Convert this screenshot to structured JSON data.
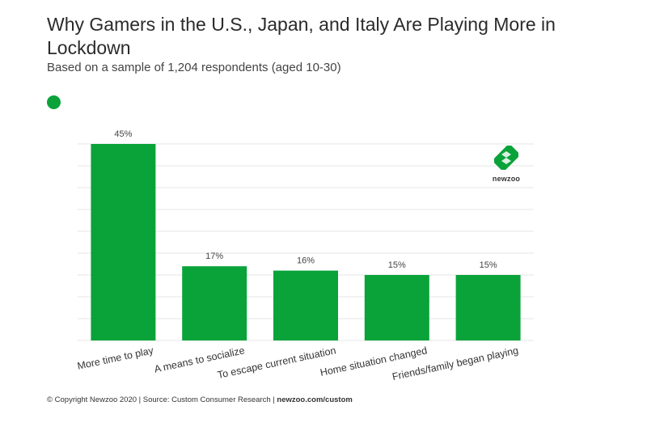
{
  "header": {
    "title": "Why Gamers in the U.S., Japan, and Italy Are Playing More in Lockdown",
    "subtitle": "Based on a sample of 1,204 respondents (aged 10-30)"
  },
  "colors": {
    "bar": "#0aa33a",
    "grid": "#e6e6e6",
    "text": "#333333"
  },
  "chart_data": {
    "type": "bar",
    "title": "Why Gamers in the U.S., Japan, and Italy Are Playing More in Lockdown",
    "subtitle": "Based on a sample of 1,204 respondents (aged 10-30)",
    "categories": [
      "More time to play",
      "A means to socialize",
      "To escape current situation",
      "Home situation changed",
      "Friends/family began playing"
    ],
    "values": [
      45,
      17,
      16,
      15,
      15
    ],
    "value_labels": [
      "45%",
      "17%",
      "16%",
      "15%",
      "15%"
    ],
    "ylim": [
      0,
      45
    ],
    "grid": true,
    "legend": "top-left"
  },
  "logo": {
    "text": "newzoo"
  },
  "footer": {
    "copyright": "© Copyright Newzoo 2020",
    "separator": " | ",
    "source": "Source: Custom Consumer Research",
    "url": "newzoo.com/custom"
  }
}
